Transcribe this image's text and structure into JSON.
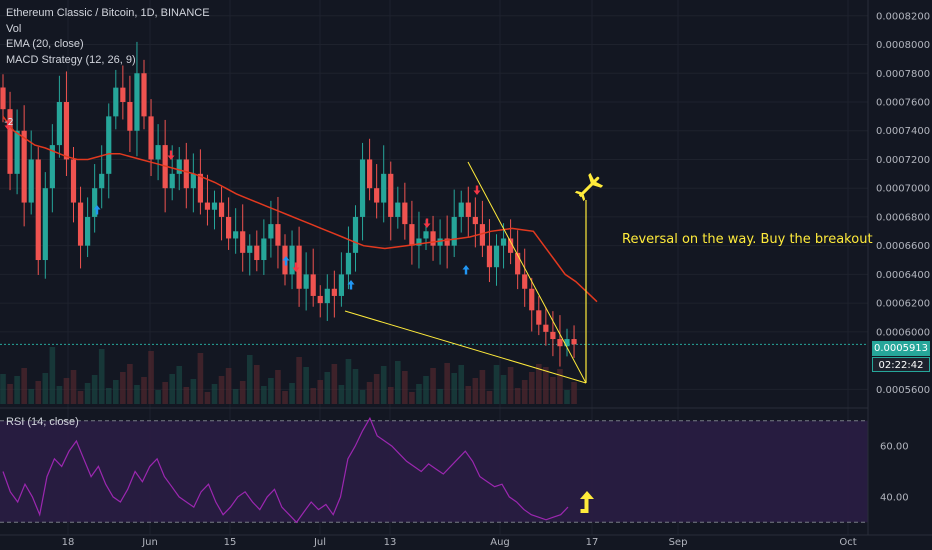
{
  "header": {
    "symbol": "Ethereum Classic / Bitcoin, 1D, BINANCE",
    "indicators": [
      "Vol",
      "EMA (20, close)",
      "MACD Strategy (12, 26, 9)"
    ]
  },
  "annotation": "Reversal on the way. Buy the breakout",
  "rsi_label": "RSI (14, close)",
  "price_tags": {
    "last": "0.0005913",
    "countdown": "02:22:42"
  },
  "colors": {
    "background": "#131722",
    "up": "#26a69a",
    "down": "#ef5350",
    "ema": "#e2391f",
    "annotation": "#ffeb3b",
    "rsi": "#9c27b0",
    "last_price": "#26a69a"
  },
  "icons": [
    "airplane-icon",
    "up-arrow-icon"
  ],
  "chart_data": [
    {
      "type": "candlestick",
      "title": "Ethereum Classic / Bitcoin, 1D, BINANCE",
      "yaxis_ticks": [
        "0.0008200",
        "0.0008000",
        "0.0007800",
        "0.0007600",
        "0.0007400",
        "0.0007200",
        "0.0007000",
        "0.0006800",
        "0.0006600",
        "0.0006400",
        "0.0006200",
        "0.0006000",
        "0.0005600"
      ],
      "ylim": [
        0.000547,
        0.000831
      ],
      "xaxis_ticks": [
        "18",
        "Jun",
        "15",
        "Jul",
        "13",
        "Aug",
        "17",
        "Sep",
        "Oct"
      ],
      "close_series": [
        0.000755,
        0.00071,
        0.00074,
        0.00069,
        0.00072,
        0.00065,
        0.0007,
        0.00073,
        0.00076,
        0.00072,
        0.00069,
        0.00066,
        0.00068,
        0.0007,
        0.00071,
        0.00075,
        0.00077,
        0.00076,
        0.00074,
        0.00078,
        0.00075,
        0.00072,
        0.00073,
        0.0007,
        0.00071,
        0.00072,
        0.0007,
        0.00071,
        0.00069,
        0.000685,
        0.00069,
        0.00068,
        0.000665,
        0.00067,
        0.000655,
        0.00066,
        0.00065,
        0.000665,
        0.000675,
        0.00066,
        0.00064,
        0.00066,
        0.00063,
        0.00064,
        0.000625,
        0.00062,
        0.00063,
        0.000625,
        0.00064,
        0.000655,
        0.00068,
        0.00072,
        0.0007,
        0.00069,
        0.00071,
        0.00068,
        0.00069,
        0.000675,
        0.00066,
        0.000665,
        0.00067,
        0.00066,
        0.000665,
        0.00066,
        0.00068,
        0.00069,
        0.00068,
        0.000675,
        0.00066,
        0.000645,
        0.00066,
        0.000665,
        0.000655,
        0.00064,
        0.00063,
        0.000615,
        0.000605,
        0.0006,
        0.000595,
        0.00059,
        0.000595,
        0.0005913
      ],
      "series": [
        {
          "name": "EMA (20, close)",
          "type": "line",
          "values": [
            0.00075,
            0.00074,
            0.000735,
            0.00073,
            0.000728,
            0.000725,
            0.000722,
            0.00072,
            0.00072,
            0.000722,
            0.000724,
            0.000724,
            0.000722,
            0.00072,
            0.000718,
            0.000716,
            0.000714,
            0.000712,
            0.00071,
            0.000707,
            0.000704,
            0.0007,
            0.000696,
            0.000693,
            0.00069,
            0.000687,
            0.000684,
            0.000681,
            0.000678,
            0.000675,
            0.000672,
            0.000669,
            0.000666,
            0.000663,
            0.00066,
            0.000659,
            0.000658,
            0.000659,
            0.00066,
            0.000661,
            0.000662,
            0.000663,
            0.000664,
            0.000665,
            0.000666,
            0.000668,
            0.00067,
            0.000671,
            0.000672,
            0.000671,
            0.00067,
            0.00066,
            0.00065,
            0.00064,
            0.000635,
            0.000628,
            0.000621
          ]
        },
        {
          "name": "RSI (14, close)",
          "type": "line",
          "ticks": [
            "60.00",
            "40.00"
          ],
          "ylim": [
            25,
            75
          ],
          "values": [
            50,
            42,
            38,
            45,
            40,
            33,
            48,
            55,
            52,
            58,
            62,
            55,
            48,
            52,
            45,
            40,
            38,
            43,
            50,
            46,
            52,
            55,
            48,
            44,
            40,
            38,
            36,
            42,
            45,
            38,
            33,
            36,
            40,
            42,
            38,
            35,
            40,
            43,
            36,
            33,
            30,
            34,
            38,
            35,
            37,
            33,
            40,
            55,
            60,
            66,
            71,
            64,
            62,
            60,
            57,
            54,
            52,
            50,
            53,
            51,
            49,
            52,
            55,
            58,
            54,
            48,
            46,
            44,
            45,
            40,
            38,
            35,
            33,
            32,
            31,
            32,
            33,
            36
          ]
        }
      ]
    }
  ]
}
